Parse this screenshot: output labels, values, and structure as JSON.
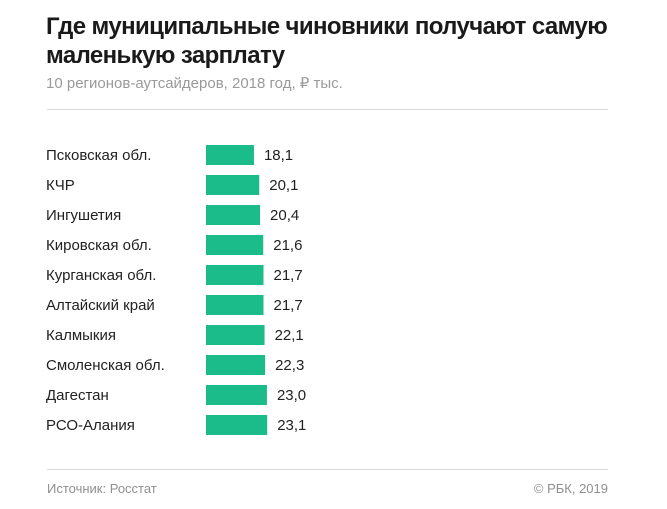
{
  "chart_data": {
    "type": "bar",
    "orientation": "horizontal",
    "title": "Где муниципальные чиновники получают самую маленькую зарплату",
    "subtitle": "10 регионов-аутсайдеров, 2018 год, ₽ тыс.",
    "categories": [
      "Псковская обл.",
      "КЧР",
      "Ингушетия",
      "Кировская обл.",
      "Курганская обл.",
      "Алтайский край",
      "Калмыкия",
      "Смоленская обл.",
      "Дагестан",
      "РСО-Алания"
    ],
    "values": [
      18.1,
      20.1,
      20.4,
      21.6,
      21.7,
      21.7,
      22.1,
      22.3,
      23.0,
      23.1
    ],
    "value_labels": [
      "18,1",
      "20,1",
      "20,4",
      "21,6",
      "21,7",
      "21,7",
      "22,1",
      "22,3",
      "23,0",
      "23,1"
    ],
    "xlabel": "",
    "ylabel": "",
    "grid": false,
    "bar_color": "#1bbc8a"
  },
  "footer": {
    "source": "Источник: Росстат",
    "copyright": "© РБК, 2019"
  }
}
